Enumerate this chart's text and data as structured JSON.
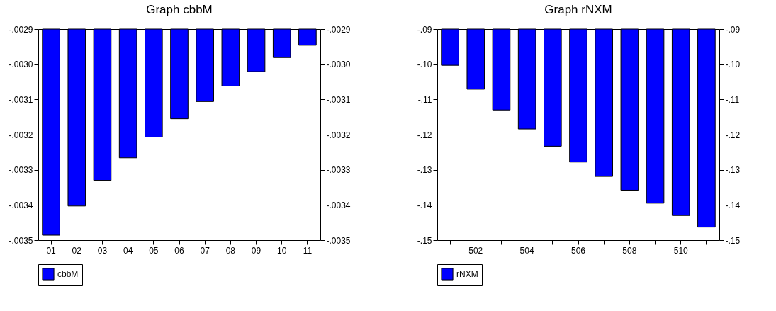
{
  "chart_data": [
    {
      "type": "bar",
      "title": "Graph cbbM",
      "categories": [
        "01",
        "02",
        "03",
        "04",
        "05",
        "06",
        "07",
        "08",
        "09",
        "10",
        "11"
      ],
      "series": [
        {
          "name": "cbbM",
          "color": "#0000ff",
          "values": [
            -0.003486,
            -0.003403,
            -0.00333,
            -0.003266,
            -0.003207,
            -0.003155,
            -0.003106,
            -0.003062,
            -0.003021,
            -0.002981,
            -0.002946
          ]
        }
      ],
      "ylim": [
        -0.0035,
        -0.0029
      ],
      "yticks": [
        {
          "value": -0.0035,
          "label": "-.0035"
        },
        {
          "value": -0.0034,
          "label": "-.0034"
        },
        {
          "value": -0.0033,
          "label": "-.0033"
        },
        {
          "value": -0.0032,
          "label": "-.0032"
        },
        {
          "value": -0.0031,
          "label": "-.0031"
        },
        {
          "value": -0.003,
          "label": "-.0030"
        },
        {
          "value": -0.0029,
          "label": "-.0029"
        }
      ],
      "y2lim": [
        -0.0035,
        -0.0029
      ],
      "y2ticks": [
        {
          "value": -0.0035,
          "label": "-.0035"
        },
        {
          "value": -0.0034,
          "label": "-.0034"
        },
        {
          "value": -0.0033,
          "label": "-.0033"
        },
        {
          "value": -0.0032,
          "label": "-.0032"
        },
        {
          "value": -0.0031,
          "label": "-.0031"
        },
        {
          "value": -0.003,
          "label": "-.0030"
        },
        {
          "value": -0.0029,
          "label": "-.0029"
        }
      ],
      "legend": "bottom"
    },
    {
      "type": "bar",
      "title": "Graph rNXM",
      "categories": [
        null,
        "502",
        null,
        "504",
        null,
        "506",
        null,
        "508",
        null,
        "510",
        null
      ],
      "series": [
        {
          "name": "rNXM",
          "color": "#0000ff",
          "values": [
            -0.1003,
            -0.1071,
            -0.113,
            -0.1184,
            -0.1233,
            -0.1278,
            -0.1319,
            -0.1358,
            -0.1395,
            -0.143,
            -0.1463
          ]
        }
      ],
      "ylim": [
        -0.15,
        -0.09
      ],
      "yticks": [
        {
          "value": -0.15,
          "label": "-.15"
        },
        {
          "value": -0.14,
          "label": "-.14"
        },
        {
          "value": -0.13,
          "label": "-.13"
        },
        {
          "value": -0.12,
          "label": "-.12"
        },
        {
          "value": -0.11,
          "label": "-.11"
        },
        {
          "value": -0.1,
          "label": "-.10"
        },
        {
          "value": -0.09,
          "label": "-.09"
        }
      ],
      "y2lim": [
        -0.15,
        -0.09
      ],
      "y2ticks": [
        {
          "value": -0.15,
          "label": "-.15"
        },
        {
          "value": -0.14,
          "label": "-.14"
        },
        {
          "value": -0.13,
          "label": "-.13"
        },
        {
          "value": -0.12,
          "label": "-.12"
        },
        {
          "value": -0.11,
          "label": "-.11"
        },
        {
          "value": -0.1,
          "label": "-.10"
        },
        {
          "value": -0.09,
          "label": "-.09"
        }
      ],
      "legend": "bottom"
    }
  ]
}
